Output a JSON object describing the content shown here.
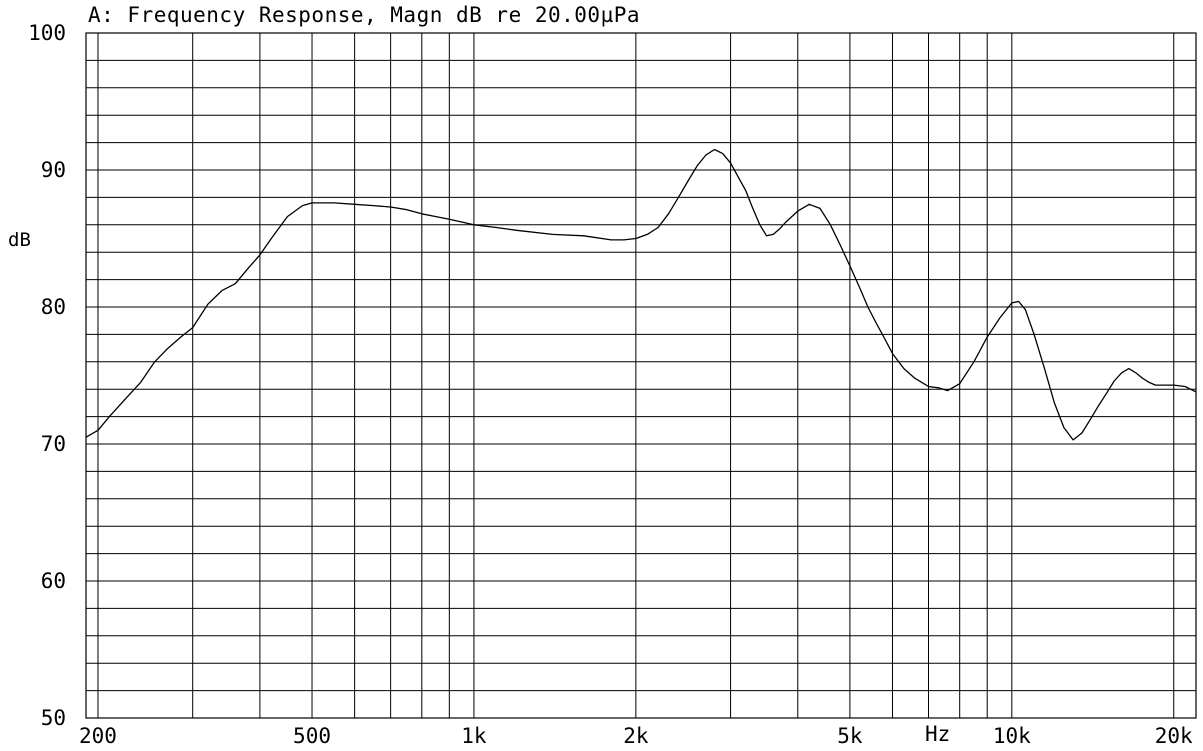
{
  "chart_data": {
    "type": "line",
    "title": "A: Frequency Response, Magn dB re 20.00µPa",
    "xlabel": "",
    "x_unit": "Hz",
    "ylabel": "dB",
    "xscale": "log",
    "xlim": [
      190,
      22000
    ],
    "ylim": [
      50,
      100
    ],
    "grid": true,
    "yticks": [
      {
        "value": 50,
        "label": "50"
      },
      {
        "value": 60,
        "label": "60"
      },
      {
        "value": 70,
        "label": "70"
      },
      {
        "value": 80,
        "label": "80"
      },
      {
        "value": 90,
        "label": "90"
      },
      {
        "value": 100,
        "label": "100"
      }
    ],
    "xticks": [
      {
        "value": 200,
        "label": "200"
      },
      {
        "value": 500,
        "label": "500"
      },
      {
        "value": 1000,
        "label": "1k"
      },
      {
        "value": 2000,
        "label": "2k"
      },
      {
        "value": 5000,
        "label": "5k"
      },
      {
        "value": 10000,
        "label": "10k"
      },
      {
        "value": 20000,
        "label": "20k"
      }
    ],
    "series": [
      {
        "x": [
          190,
          200,
          210,
          225,
          240,
          255,
          270,
          285,
          300,
          320,
          340,
          360,
          380,
          400,
          420,
          450,
          480,
          500,
          550,
          600,
          650,
          700,
          750,
          800,
          850,
          900,
          1000,
          1100,
          1200,
          1400,
          1600,
          1800,
          1900,
          2000,
          2100,
          2200,
          2300,
          2400,
          2500,
          2600,
          2700,
          2800,
          2900,
          3000,
          3100,
          3200,
          3300,
          3400,
          3500,
          3600,
          3700,
          3800,
          4000,
          4200,
          4400,
          4600,
          4800,
          5000,
          5200,
          5400,
          5600,
          5800,
          6000,
          6300,
          6600,
          7000,
          7300,
          7600,
          8000,
          8500,
          9000,
          9500,
          10000,
          10300,
          10600,
          11000,
          11500,
          12000,
          12500,
          13000,
          13500,
          14000,
          14500,
          15000,
          15500,
          16000,
          16500,
          17000,
          17500,
          18000,
          18500,
          19000,
          20000,
          21000,
          22000
        ],
        "y": [
          70.5,
          71,
          72,
          73.3,
          74.5,
          76,
          77,
          77.8,
          78.5,
          80.2,
          81.2,
          81.7,
          82.8,
          83.8,
          85,
          86.6,
          87.4,
          87.6,
          87.6,
          87.5,
          87.4,
          87.3,
          87.1,
          86.8,
          86.6,
          86.4,
          86.0,
          85.8,
          85.6,
          85.3,
          85.2,
          84.9,
          84.9,
          85.0,
          85.3,
          85.8,
          86.8,
          88,
          89.2,
          90.3,
          91.1,
          91.5,
          91.2,
          90.5,
          89.5,
          88.5,
          87.2,
          86,
          85.2,
          85.3,
          85.7,
          86.2,
          87,
          87.5,
          87.2,
          86,
          84.5,
          83,
          81.5,
          80,
          78.8,
          77.7,
          76.6,
          75.5,
          74.8,
          74.2,
          74.1,
          73.9,
          74.4,
          76,
          77.8,
          79.2,
          80.3,
          80.4,
          79.8,
          78,
          75.5,
          73,
          71.2,
          70.3,
          70.8,
          71.8,
          72.8,
          73.7,
          74.6,
          75.2,
          75.5,
          75.2,
          74.8,
          74.5,
          74.3,
          74.3,
          74.3,
          74.2,
          73.8
        ]
      }
    ]
  }
}
